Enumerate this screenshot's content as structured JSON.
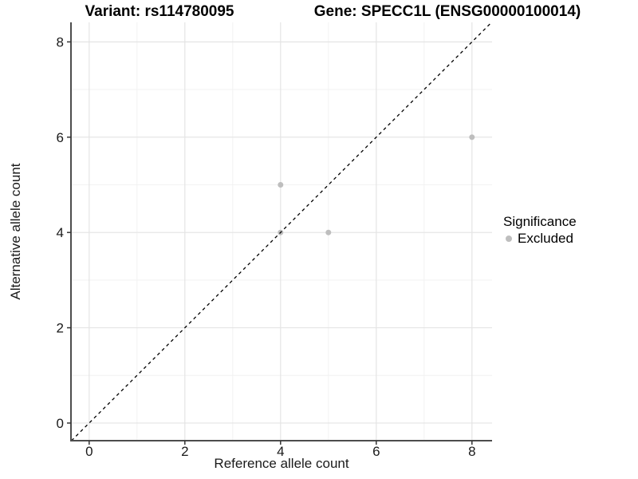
{
  "header": {
    "variant_title": "Variant: rs114780095",
    "gene_title": "Gene: SPECC1L (ENSG00000100014)"
  },
  "legend": {
    "title": "Significance",
    "items": [
      {
        "label": "Excluded",
        "color": "#bebebe",
        "marker": "circle"
      }
    ]
  },
  "chart_data": {
    "type": "scatter",
    "x_label": "Reference allele count",
    "y_label": "Alternative allele count",
    "x_ticks": [
      0,
      2,
      4,
      6,
      8
    ],
    "y_ticks": [
      0,
      2,
      4,
      6,
      8
    ],
    "x_minor_gridlines": [
      1,
      3,
      5,
      7
    ],
    "y_minor_gridlines": [
      1,
      3,
      5,
      7
    ],
    "xlim": [
      -0.38,
      8.42
    ],
    "ylim": [
      -0.37,
      8.41
    ],
    "grid": "on",
    "legend_position": "right",
    "series": [
      {
        "name": "Excluded",
        "color": "#bebebe",
        "points": [
          {
            "x": 4,
            "y": 4
          },
          {
            "x": 4,
            "y": 5
          },
          {
            "x": 5,
            "y": 4
          },
          {
            "x": 8,
            "y": 6
          }
        ]
      }
    ],
    "reference_line": {
      "type": "identity y=x",
      "style": "dashed",
      "color": "#000000"
    }
  }
}
